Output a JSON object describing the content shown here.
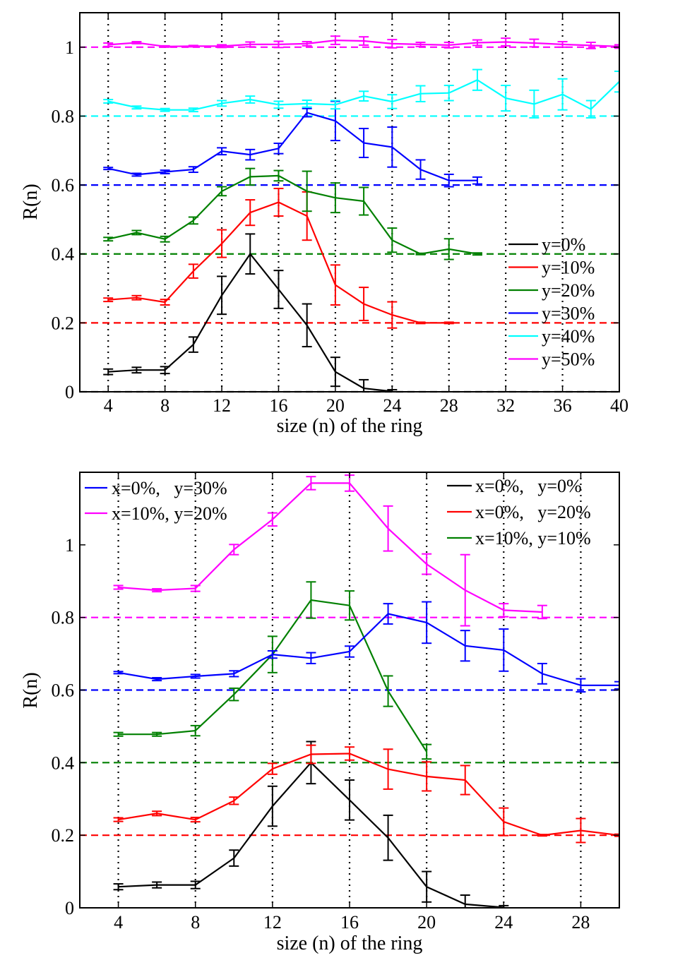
{
  "chart_data": [
    {
      "type": "line",
      "xlabel": "size (n) of the ring",
      "ylabel": "R(n)",
      "xlim": [
        2,
        40
      ],
      "ylim": [
        0,
        1.1
      ],
      "xticks": [
        4,
        8,
        12,
        16,
        20,
        24,
        28,
        32,
        36,
        40
      ],
      "yticks": [
        0,
        0.2,
        0.4,
        0.6,
        0.8,
        1
      ],
      "ytick_labels": [
        "0",
        "0.2",
        "0.4",
        "0.6",
        "0.8",
        "1"
      ],
      "vertical_dotted_lines": [
        4,
        8,
        12,
        16,
        20,
        24,
        28,
        32,
        36
      ],
      "legend_position": "middle-right",
      "series": [
        {
          "name": "y=0%",
          "color": "#000000",
          "baseline": 0,
          "x": [
            4,
            6,
            8,
            10,
            12,
            14,
            16,
            18,
            20,
            22,
            24
          ],
          "y": [
            0.058,
            0.063,
            0.063,
            0.137,
            0.28,
            0.4,
            0.297,
            0.193,
            0.058,
            0.01,
            0.001
          ],
          "err": [
            0.008,
            0.008,
            0.01,
            0.022,
            0.055,
            0.058,
            0.055,
            0.062,
            0.042,
            0.025,
            0.005
          ]
        },
        {
          "name": "y=10%",
          "color": "#ff0000",
          "baseline": 0.2,
          "x": [
            4,
            6,
            8,
            10,
            12,
            14,
            16,
            18,
            20,
            22,
            24,
            26,
            28
          ],
          "y": [
            0.267,
            0.273,
            0.26,
            0.35,
            0.43,
            0.52,
            0.55,
            0.51,
            0.31,
            0.255,
            0.223,
            0.2,
            0.2
          ],
          "err": [
            0.005,
            0.006,
            0.008,
            0.02,
            0.04,
            0.037,
            0.04,
            0.07,
            0.058,
            0.048,
            0.038,
            0.002,
            0.002
          ]
        },
        {
          "name": "y=20%",
          "color": "#008000",
          "baseline": 0.4,
          "x": [
            4,
            6,
            8,
            10,
            12,
            14,
            16,
            18,
            20,
            22,
            24,
            26,
            28,
            30
          ],
          "y": [
            0.443,
            0.462,
            0.443,
            0.497,
            0.582,
            0.624,
            0.627,
            0.582,
            0.563,
            0.553,
            0.44,
            0.4,
            0.414,
            0.4
          ],
          "err": [
            0.005,
            0.006,
            0.008,
            0.01,
            0.013,
            0.024,
            0.015,
            0.058,
            0.043,
            0.04,
            0.035,
            0.002,
            0.03,
            0.003
          ]
        },
        {
          "name": "y=30%",
          "color": "#0000ff",
          "baseline": 0.6,
          "x": [
            4,
            6,
            8,
            10,
            12,
            14,
            16,
            18,
            20,
            22,
            24,
            26,
            28,
            30
          ],
          "y": [
            0.648,
            0.63,
            0.638,
            0.645,
            0.698,
            0.688,
            0.706,
            0.81,
            0.786,
            0.722,
            0.71,
            0.645,
            0.613,
            0.613
          ],
          "err": [
            0.003,
            0.004,
            0.005,
            0.008,
            0.01,
            0.015,
            0.015,
            0.012,
            0.057,
            0.042,
            0.058,
            0.028,
            0.018,
            0.01
          ]
        },
        {
          "name": "y=40%",
          "color": "#00ffff",
          "baseline": 0.8,
          "x": [
            4,
            6,
            8,
            10,
            12,
            14,
            16,
            18,
            20,
            22,
            24,
            26,
            28,
            30,
            32,
            34,
            36,
            38,
            40
          ],
          "y": [
            0.843,
            0.825,
            0.818,
            0.818,
            0.837,
            0.848,
            0.833,
            0.836,
            0.833,
            0.858,
            0.842,
            0.865,
            0.867,
            0.905,
            0.852,
            0.835,
            0.863,
            0.82,
            0.9
          ],
          "err": [
            0.005,
            0.004,
            0.004,
            0.005,
            0.008,
            0.01,
            0.01,
            0.01,
            0.012,
            0.014,
            0.02,
            0.023,
            0.022,
            0.03,
            0.037,
            0.04,
            0.045,
            0.025,
            0.03
          ]
        },
        {
          "name": "y=50%",
          "color": "#ff00ff",
          "baseline": 1.0,
          "x": [
            4,
            6,
            8,
            10,
            12,
            14,
            16,
            18,
            20,
            22,
            24,
            26,
            28,
            30,
            32,
            34,
            36,
            38,
            40
          ],
          "y": [
            1.007,
            1.013,
            1.002,
            1.003,
            1.003,
            1.008,
            1.008,
            1.01,
            1.02,
            1.018,
            1.01,
            1.008,
            1.006,
            1.013,
            1.015,
            1.012,
            1.008,
            1.005,
            1.002
          ],
          "err": [
            0.005,
            0.003,
            0.002,
            0.002,
            0.004,
            0.007,
            0.009,
            0.006,
            0.012,
            0.012,
            0.012,
            0.006,
            0.008,
            0.008,
            0.011,
            0.011,
            0.008,
            0.009,
            0.005
          ]
        }
      ],
      "legend": [
        "y=0%",
        "y=10%",
        "y=20%",
        "y=30%",
        "y=40%",
        "y=50%"
      ]
    },
    {
      "type": "line",
      "xlabel": "size (n) of the ring",
      "ylabel": "R(n)",
      "xlim": [
        2,
        30
      ],
      "ylim": [
        0,
        1.2
      ],
      "xticks": [
        4,
        8,
        12,
        16,
        20,
        24,
        28
      ],
      "yticks": [
        0,
        0.2,
        0.4,
        0.6,
        0.8,
        1
      ],
      "ytick_labels": [
        "0",
        "0.2",
        "0.4",
        "0.6",
        "0.8",
        "1"
      ],
      "vertical_dotted_lines": [
        4,
        8,
        12,
        16,
        20,
        24,
        28
      ],
      "legend_position": "top-left and top-right",
      "series": [
        {
          "name": "x=0%,   y=0%",
          "color": "#000000",
          "baseline": null,
          "x": [
            4,
            6,
            8,
            10,
            12,
            14,
            16,
            18,
            20,
            22,
            24
          ],
          "y": [
            0.058,
            0.063,
            0.063,
            0.137,
            0.28,
            0.4,
            0.297,
            0.193,
            0.058,
            0.01,
            0.001
          ],
          "err": [
            0.008,
            0.008,
            0.01,
            0.022,
            0.055,
            0.058,
            0.055,
            0.062,
            0.042,
            0.025,
            0.005
          ]
        },
        {
          "name": "x=0%,   y=20%",
          "color": "#ff0000",
          "baseline": 0.2,
          "x": [
            4,
            6,
            8,
            10,
            12,
            14,
            16,
            18,
            20,
            22,
            24,
            26,
            28,
            30
          ],
          "y": [
            0.243,
            0.26,
            0.243,
            0.295,
            0.383,
            0.423,
            0.425,
            0.382,
            0.362,
            0.352,
            0.237,
            0.2,
            0.213,
            0.2
          ],
          "err": [
            0.005,
            0.006,
            0.006,
            0.01,
            0.015,
            0.025,
            0.018,
            0.055,
            0.04,
            0.04,
            0.038,
            0.002,
            0.033,
            0.003
          ]
        },
        {
          "name": "x=10%, y=10%",
          "color": "#008000",
          "baseline": 0.4,
          "x": [
            4,
            6,
            8,
            10,
            12,
            14,
            16,
            18,
            20
          ],
          "y": [
            0.478,
            0.478,
            0.488,
            0.588,
            0.698,
            0.848,
            0.833,
            0.597,
            0.43
          ],
          "err": [
            0.005,
            0.005,
            0.014,
            0.017,
            0.05,
            0.05,
            0.04,
            0.042,
            0.02
          ]
        },
        {
          "name": "x=0%,   y=30%",
          "color": "#0000ff",
          "baseline": 0.6,
          "x": [
            4,
            6,
            8,
            10,
            12,
            14,
            16,
            18,
            20,
            22,
            24,
            26,
            28,
            30
          ],
          "y": [
            0.648,
            0.63,
            0.638,
            0.645,
            0.698,
            0.688,
            0.706,
            0.81,
            0.786,
            0.722,
            0.71,
            0.645,
            0.613,
            0.613
          ],
          "err": [
            0.003,
            0.004,
            0.005,
            0.008,
            0.01,
            0.015,
            0.015,
            0.028,
            0.057,
            0.042,
            0.058,
            0.028,
            0.018,
            0.01
          ]
        },
        {
          "name": "x=10%, y=20%",
          "color": "#ff00ff",
          "baseline": 0.8,
          "x": [
            4,
            6,
            8,
            10,
            12,
            14,
            16,
            18,
            20,
            22,
            24,
            26
          ],
          "y": [
            0.883,
            0.875,
            0.88,
            0.987,
            1.07,
            1.17,
            1.17,
            1.045,
            0.947,
            0.875,
            0.82,
            0.815
          ],
          "err": [
            0.005,
            0.004,
            0.008,
            0.014,
            0.018,
            0.018,
            0.022,
            0.062,
            0.028,
            0.098,
            0.018,
            0.018
          ]
        }
      ],
      "legend_left": [
        "x=0%,   y=30%",
        "x=10%, y=20%"
      ],
      "legend_right": [
        "x=0%,   y=0%",
        "x=0%,   y=20%",
        "x=10%, y=10%"
      ]
    }
  ]
}
